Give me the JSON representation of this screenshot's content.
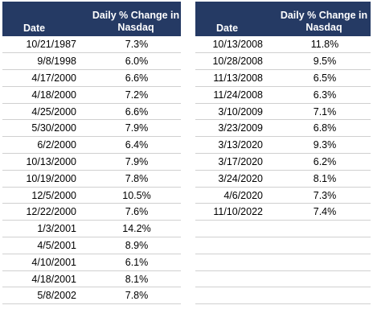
{
  "headers": {
    "date": "Date",
    "change_line1": "Daily % Change in",
    "change_line2": "Nasdaq"
  },
  "left_rows": [
    {
      "date": "10/21/1987",
      "change": "7.3%"
    },
    {
      "date": "9/8/1998",
      "change": "6.0%"
    },
    {
      "date": "4/17/2000",
      "change": "6.6%"
    },
    {
      "date": "4/18/2000",
      "change": "7.2%"
    },
    {
      "date": "4/25/2000",
      "change": "6.6%"
    },
    {
      "date": "5/30/2000",
      "change": "7.9%"
    },
    {
      "date": "6/2/2000",
      "change": "6.4%"
    },
    {
      "date": "10/13/2000",
      "change": "7.9%"
    },
    {
      "date": "10/19/2000",
      "change": "7.8%"
    },
    {
      "date": "12/5/2000",
      "change": "10.5%"
    },
    {
      "date": "12/22/2000",
      "change": "7.6%"
    },
    {
      "date": "1/3/2001",
      "change": "14.2%"
    },
    {
      "date": "4/5/2001",
      "change": "8.9%"
    },
    {
      "date": "4/10/2001",
      "change": "6.1%"
    },
    {
      "date": "4/18/2001",
      "change": "8.1%"
    },
    {
      "date": "5/8/2002",
      "change": "7.8%"
    }
  ],
  "right_rows": [
    {
      "date": "10/13/2008",
      "change": "11.8%"
    },
    {
      "date": "10/28/2008",
      "change": "9.5%"
    },
    {
      "date": "11/13/2008",
      "change": "6.5%"
    },
    {
      "date": "11/24/2008",
      "change": "6.3%"
    },
    {
      "date": "3/10/2009",
      "change": "7.1%"
    },
    {
      "date": "3/23/2009",
      "change": "6.8%"
    },
    {
      "date": "3/13/2020",
      "change": "9.3%"
    },
    {
      "date": "3/17/2020",
      "change": "6.2%"
    },
    {
      "date": "3/24/2020",
      "change": "8.1%"
    },
    {
      "date": "4/6/2020",
      "change": "7.3%"
    },
    {
      "date": "11/10/2022",
      "change": "7.4%"
    },
    {
      "date": "",
      "change": ""
    },
    {
      "date": "",
      "change": ""
    },
    {
      "date": "",
      "change": ""
    },
    {
      "date": "",
      "change": ""
    },
    {
      "date": "",
      "change": ""
    }
  ]
}
